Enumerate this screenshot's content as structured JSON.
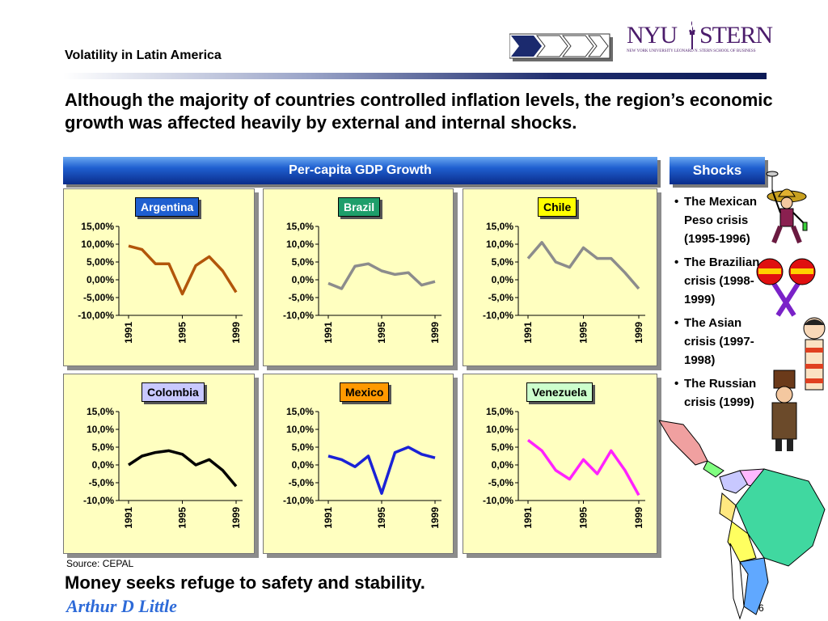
{
  "header": {
    "title": "Volatility in Latin America"
  },
  "logo": {
    "primary_left": "NYU",
    "primary_right": "STERN",
    "subtitle": "NEW YORK UNIVERSITY LEONARD N. STERN SCHOOL OF BUSINESS"
  },
  "headline": "Although the majority of countries controlled inflation levels, the region’s economic growth was affected heavily by external and internal shocks.",
  "chart_section_title": "Per-capita GDP Growth",
  "shocks": {
    "title": "Shocks",
    "items": [
      "The Mexican Peso crisis (1995-1996)",
      "The Brazilian crisis (1998-1999)",
      "The Asian crisis (1997-1998)",
      "The Russian crisis (1999)"
    ]
  },
  "colors": {
    "banner": "#1f5fd0",
    "panel_bg": "#ffffc0",
    "argentina": "#b2560a",
    "brazil": "#8c8c8c",
    "chile": "#8c8c8c",
    "colombia": "#000000",
    "mexico": "#1a22d6",
    "venezuela": "#ff22ff"
  },
  "chart_data": [
    {
      "type": "line",
      "title": "Argentina",
      "title_bg": "#1f5fd0",
      "title_color": "#ffffff",
      "x": [
        1991,
        1992,
        1993,
        1994,
        1995,
        1996,
        1997,
        1998,
        1999
      ],
      "series": [
        {
          "values": [
            9.5,
            8.5,
            4.5,
            4.5,
            -4.0,
            4.0,
            6.5,
            2.5,
            -3.5
          ]
        }
      ],
      "ylim": [
        -10,
        15
      ],
      "yticks": [
        "15,00%",
        "10,00%",
        "5,00%",
        "0,00%",
        "-5,00%",
        "-10,00%"
      ],
      "xticks": [
        "1991",
        "1995",
        "1999"
      ]
    },
    {
      "type": "line",
      "title": "Brazil",
      "title_bg": "#1e9e6a",
      "title_color": "#ffffff",
      "x": [
        1991,
        1992,
        1993,
        1994,
        1995,
        1996,
        1997,
        1998,
        1999
      ],
      "series": [
        {
          "values": [
            -1.0,
            -2.5,
            3.8,
            4.5,
            2.5,
            1.5,
            2.0,
            -1.5,
            -0.5
          ]
        }
      ],
      "ylim": [
        -10,
        15
      ],
      "yticks": [
        "15,0%",
        "10,0%",
        "5,0%",
        "0,0%",
        "-5,0%",
        "-10,0%"
      ],
      "xticks": [
        "1991",
        "1995",
        "1999"
      ]
    },
    {
      "type": "line",
      "title": "Chile",
      "title_bg": "#ffff00",
      "title_color": "#000000",
      "x": [
        1991,
        1992,
        1993,
        1994,
        1995,
        1996,
        1997,
        1998,
        1999
      ],
      "series": [
        {
          "values": [
            6.0,
            10.5,
            5.0,
            3.5,
            9.0,
            6.0,
            6.0,
            2.0,
            -2.5
          ]
        }
      ],
      "ylim": [
        -10,
        15
      ],
      "yticks": [
        "15,0%",
        "10,0%",
        "5,0%",
        "0,0%",
        "-5,0%",
        "-10,0%"
      ],
      "xticks": [
        "1991",
        "1995",
        "1999"
      ]
    },
    {
      "type": "line",
      "title": "Colombia",
      "title_bg": "#c8c8ff",
      "title_color": "#000000",
      "x": [
        1991,
        1992,
        1993,
        1994,
        1995,
        1996,
        1997,
        1998,
        1999
      ],
      "series": [
        {
          "values": [
            0.0,
            2.5,
            3.5,
            4.0,
            3.0,
            0.0,
            1.5,
            -1.5,
            -6.0
          ]
        }
      ],
      "ylim": [
        -10,
        15
      ],
      "yticks": [
        "15,0%",
        "10,0%",
        "5,0%",
        "0,0%",
        "-5,0%",
        "-10,0%"
      ],
      "xticks": [
        "1991",
        "1995",
        "1999"
      ]
    },
    {
      "type": "line",
      "title": "Mexico",
      "title_bg": "#ff9900",
      "title_color": "#000000",
      "x": [
        1991,
        1992,
        1993,
        1994,
        1995,
        1996,
        1997,
        1998,
        1999
      ],
      "series": [
        {
          "values": [
            2.5,
            1.5,
            -0.5,
            2.5,
            -8.0,
            3.5,
            5.0,
            3.0,
            2.0
          ]
        }
      ],
      "ylim": [
        -10,
        15
      ],
      "yticks": [
        "15,0%",
        "10,0%",
        "5,0%",
        "0,0%",
        "-5,0%",
        "-10,0%"
      ],
      "xticks": [
        "1991",
        "1995",
        "1999"
      ]
    },
    {
      "type": "line",
      "title": "Venezuela",
      "title_bg": "#ccffcc",
      "title_color": "#000000",
      "x": [
        1991,
        1992,
        1993,
        1994,
        1995,
        1996,
        1997,
        1998,
        1999
      ],
      "series": [
        {
          "values": [
            7.0,
            4.0,
            -1.5,
            -4.0,
            1.5,
            -2.5,
            4.0,
            -1.5,
            -8.5
          ]
        }
      ],
      "ylim": [
        -10,
        15
      ],
      "yticks": [
        "15,0%",
        "10,0%",
        "5,0%",
        "0,0%",
        "-5,0%",
        "-10,0%"
      ],
      "xticks": [
        "1991",
        "1995",
        "1999"
      ]
    }
  ],
  "footer": {
    "source": "Source: CEPAL",
    "tagline": "Money seeks refuge to safety and stability.",
    "company": "Arthur D Little",
    "page": "6"
  }
}
